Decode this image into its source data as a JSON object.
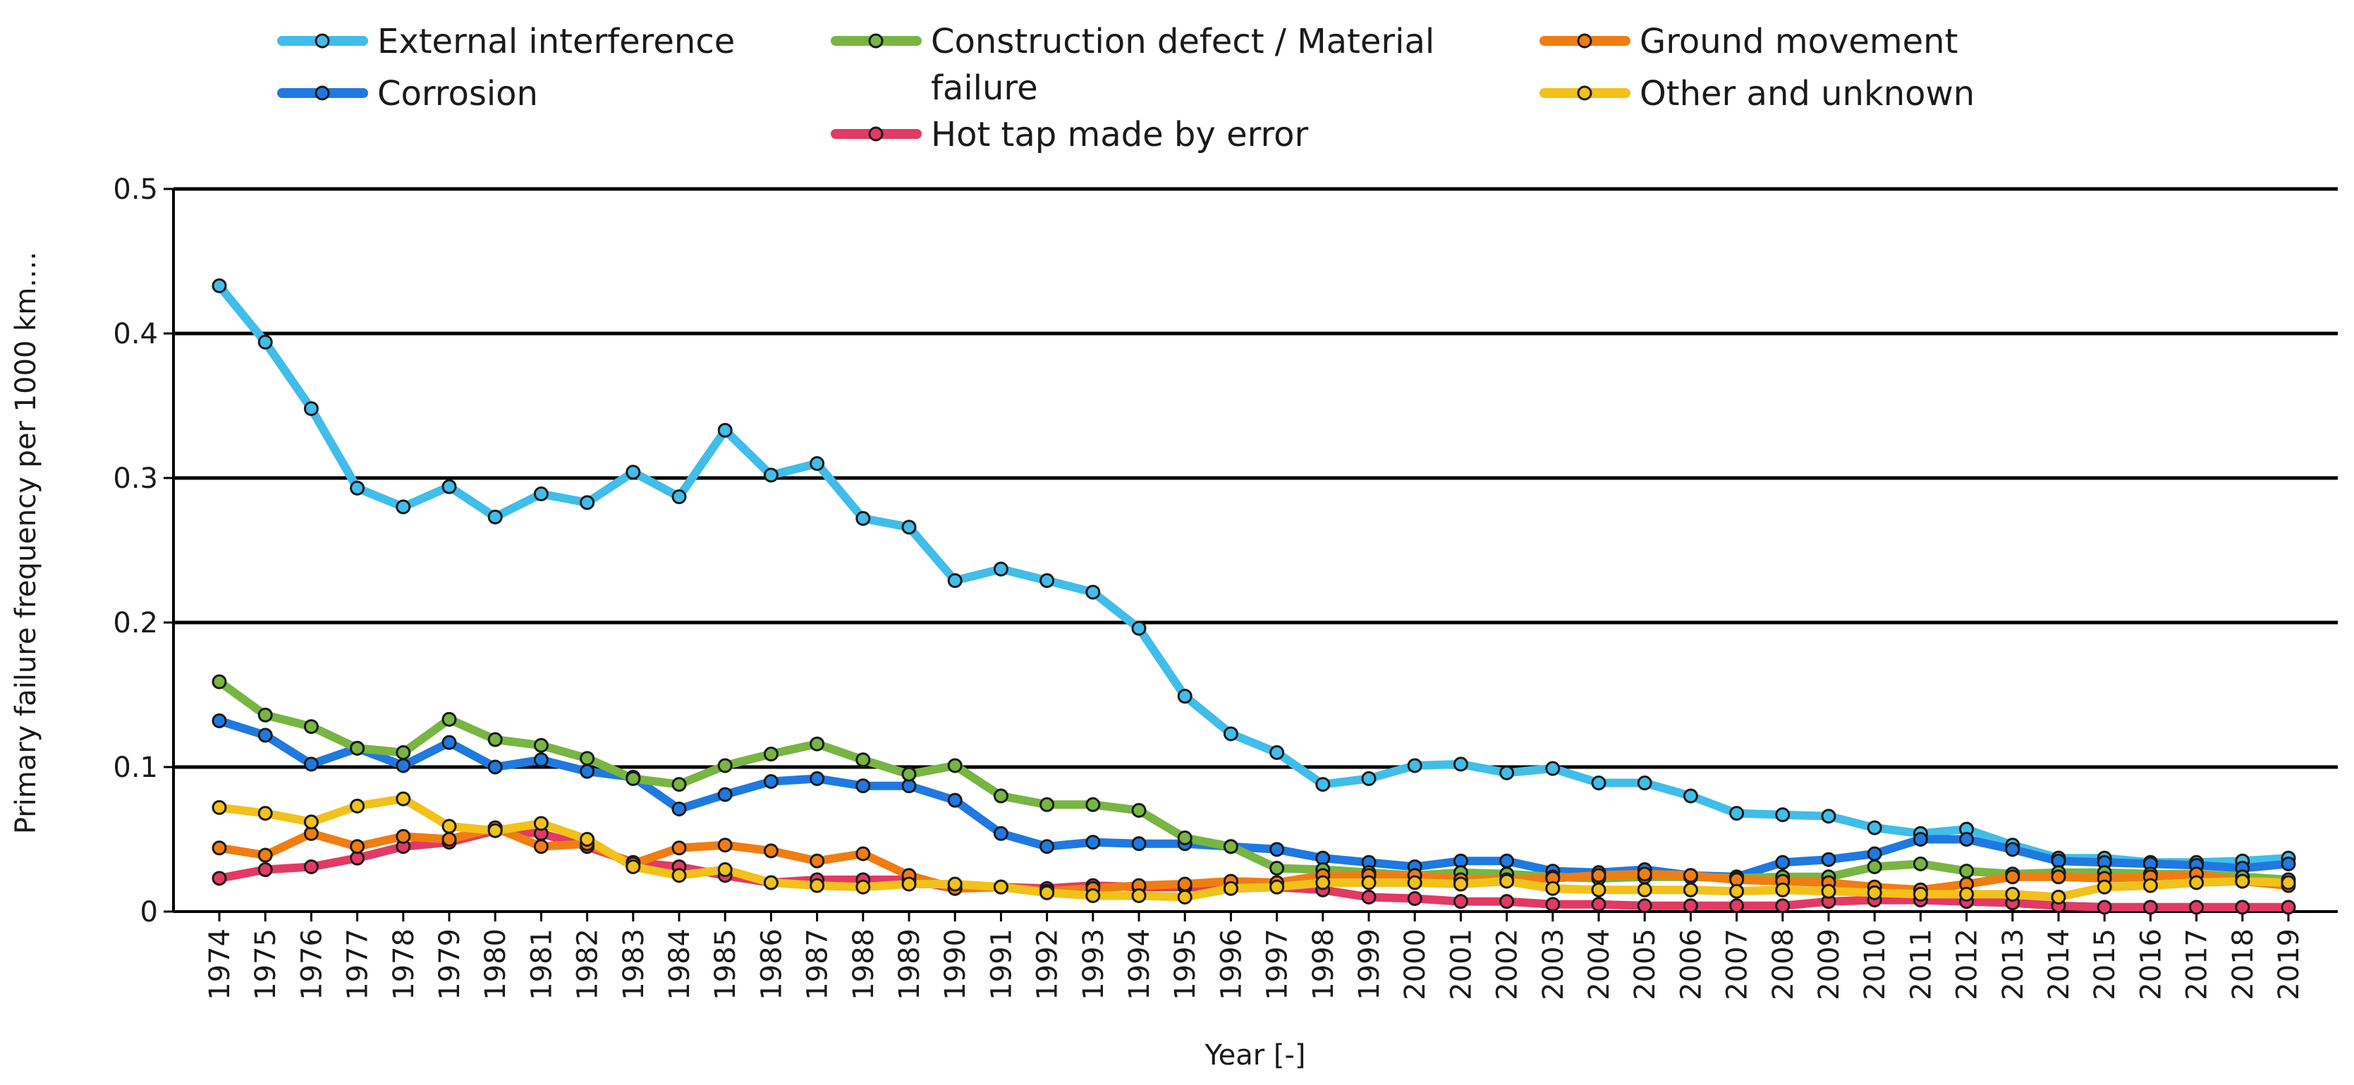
{
  "chart_data": {
    "type": "line",
    "xlabel": "Year [-]",
    "ylabel": "Primary failure frequency  per 1000 km....",
    "ylim": [
      0,
      0.5
    ],
    "yticks": [
      0,
      0.1,
      0.2,
      0.3,
      0.4,
      0.5
    ],
    "ytick_labels": [
      "0",
      "0.1",
      "0.2",
      "0.3",
      "0.4",
      "0.5"
    ],
    "grid": "horizontal",
    "legend_position": "top",
    "x": [
      "1974",
      "1975",
      "1976",
      "1977",
      "1978",
      "1979",
      "1980",
      "1981",
      "1982",
      "1983",
      "1984",
      "1985",
      "1986",
      "1987",
      "1988",
      "1989",
      "1990",
      "1991",
      "1992",
      "1993",
      "1994",
      "1995",
      "1996",
      "1997",
      "1998",
      "1999",
      "2000",
      "2001",
      "2002",
      "2003",
      "2004",
      "2005",
      "2006",
      "2007",
      "2008",
      "2009",
      "2010",
      "2011",
      "2012",
      "2013",
      "2014",
      "2015",
      "2016",
      "2017",
      "2018",
      "2019"
    ],
    "series": [
      {
        "name": "External interference",
        "color": "#41bde9",
        "values": [
          0.433,
          0.394,
          0.348,
          0.293,
          0.28,
          0.294,
          0.273,
          0.289,
          0.283,
          0.304,
          0.287,
          0.333,
          0.302,
          0.31,
          0.272,
          0.266,
          0.229,
          0.237,
          0.229,
          0.221,
          0.196,
          0.149,
          0.123,
          0.11,
          0.088,
          0.092,
          0.101,
          0.102,
          0.096,
          0.099,
          0.089,
          0.089,
          0.08,
          0.068,
          0.067,
          0.066,
          0.058,
          0.054,
          0.057,
          0.046,
          0.037,
          0.037,
          0.034,
          0.034,
          0.035,
          0.037
        ]
      },
      {
        "name": "Corrosion",
        "color": "#1f79e0",
        "values": [
          0.132,
          0.122,
          0.102,
          0.113,
          0.101,
          0.117,
          0.1,
          0.105,
          0.097,
          0.093,
          0.071,
          0.081,
          0.09,
          0.092,
          0.087,
          0.087,
          0.077,
          0.054,
          0.045,
          0.048,
          0.047,
          0.047,
          0.045,
          0.043,
          0.037,
          0.034,
          0.031,
          0.035,
          0.035,
          0.028,
          0.027,
          0.029,
          0.025,
          0.024,
          0.034,
          0.036,
          0.04,
          0.05,
          0.05,
          0.043,
          0.035,
          0.034,
          0.033,
          0.032,
          0.03,
          0.033
        ]
      },
      {
        "name": "Construction defect / Material failure",
        "color": "#78b542",
        "values": [
          0.159,
          0.136,
          0.128,
          0.113,
          0.11,
          0.133,
          0.119,
          0.115,
          0.106,
          0.092,
          0.088,
          0.101,
          0.109,
          0.116,
          0.105,
          0.095,
          0.101,
          0.08,
          0.074,
          0.074,
          0.07,
          0.051,
          0.045,
          0.03,
          0.029,
          0.027,
          0.025,
          0.027,
          0.026,
          0.024,
          0.023,
          0.024,
          0.024,
          0.023,
          0.024,
          0.024,
          0.031,
          0.033,
          0.028,
          0.026,
          0.027,
          0.027,
          0.026,
          0.026,
          0.024,
          0.022
        ]
      },
      {
        "name": "Hot tap made by error",
        "color": "#e23a64",
        "values": [
          0.023,
          0.029,
          0.031,
          0.037,
          0.045,
          0.048,
          0.056,
          0.054,
          0.045,
          0.034,
          0.031,
          0.025,
          0.02,
          0.022,
          0.022,
          0.022,
          0.016,
          0.017,
          0.016,
          0.018,
          0.017,
          0.017,
          0.016,
          0.017,
          0.015,
          0.01,
          0.009,
          0.007,
          0.007,
          0.005,
          0.005,
          0.004,
          0.004,
          0.004,
          0.004,
          0.007,
          0.008,
          0.008,
          0.007,
          0.006,
          0.004,
          0.003,
          0.003,
          0.003,
          0.003,
          0.003
        ]
      },
      {
        "name": "Ground movement",
        "color": "#f07d12",
        "values": [
          0.044,
          0.039,
          0.054,
          0.045,
          0.052,
          0.05,
          0.058,
          0.045,
          0.047,
          0.033,
          0.044,
          0.046,
          0.042,
          0.035,
          0.04,
          0.025,
          0.016,
          0.017,
          0.014,
          0.016,
          0.018,
          0.019,
          0.021,
          0.02,
          0.025,
          0.025,
          0.025,
          0.022,
          0.022,
          0.023,
          0.025,
          0.026,
          0.025,
          0.022,
          0.021,
          0.02,
          0.017,
          0.015,
          0.019,
          0.024,
          0.024,
          0.023,
          0.024,
          0.026,
          0.021,
          0.018
        ]
      },
      {
        "name": "Other and unknown",
        "color": "#f2c11a",
        "values": [
          0.072,
          0.068,
          0.062,
          0.073,
          0.078,
          0.059,
          0.056,
          0.061,
          0.05,
          0.031,
          0.025,
          0.029,
          0.02,
          0.018,
          0.017,
          0.019,
          0.019,
          0.017,
          0.013,
          0.011,
          0.011,
          0.01,
          0.016,
          0.017,
          0.02,
          0.02,
          0.02,
          0.019,
          0.021,
          0.016,
          0.015,
          0.015,
          0.015,
          0.014,
          0.015,
          0.014,
          0.013,
          0.012,
          0.012,
          0.012,
          0.01,
          0.017,
          0.018,
          0.02,
          0.021,
          0.02
        ]
      }
    ]
  }
}
